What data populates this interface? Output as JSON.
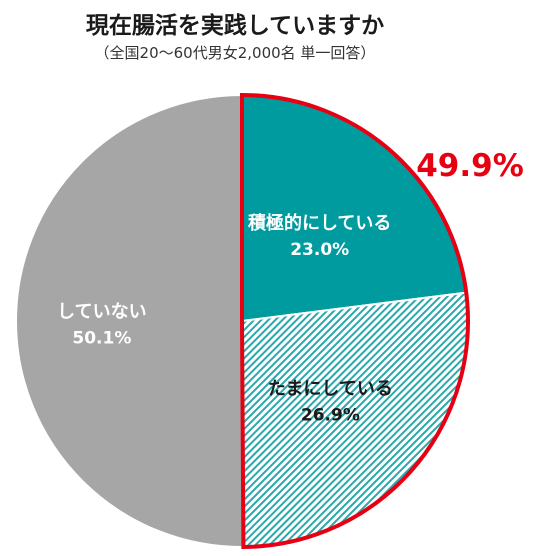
{
  "chart_data": {
    "type": "pie",
    "title": "現在腸活を実践していますか",
    "subtitle": "（全国20～60代男女2,000名 単一回答）",
    "slices": [
      {
        "label": "積極的にしている",
        "value": 23.0,
        "value_text": "23.0%",
        "color": "#009b9f",
        "pattern": "solid",
        "label_color": "#ffffff"
      },
      {
        "label": "たまにしている",
        "value": 26.9,
        "value_text": "26.9%",
        "color": "#009b9f",
        "pattern": "diagonal-hatch",
        "label_color": "#1a1a1a"
      },
      {
        "label": "していない",
        "value": 50.1,
        "value_text": "50.1%",
        "color": "#a6a6a6",
        "pattern": "solid",
        "label_color": "#ffffff"
      }
    ],
    "highlight": {
      "text": "49.9%",
      "color": "#e60012",
      "covers": [
        "積極的にしている",
        "たまにしている"
      ]
    },
    "start": "12 o'clock",
    "direction": "clockwise"
  }
}
